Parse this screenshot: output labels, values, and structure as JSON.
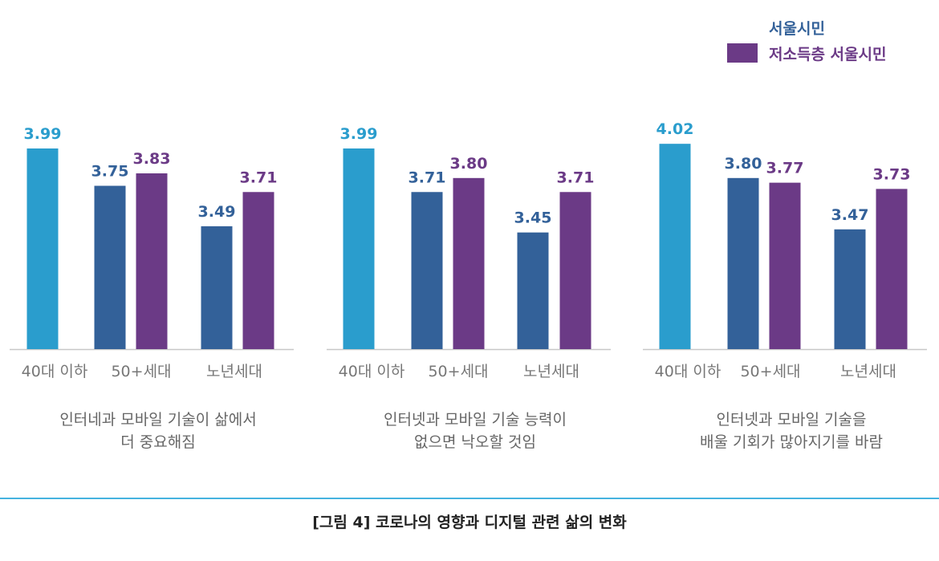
{
  "legend": [
    {
      "label": "서울시민",
      "color": "#336199"
    },
    {
      "label": "저소득층 서울시민",
      "color": "#6b3a86"
    }
  ],
  "caption": "[그림 4] 코로나의 영향과 디지털 관련 삶의 변화",
  "colors": {
    "first_bar": "#2a9dcd",
    "seoul": "#336199",
    "low_income": "#6b3a86",
    "axis": "#c8c8c8",
    "tick_text": "#777777",
    "title_text": "#666666"
  },
  "chart_data": [
    {
      "type": "bar",
      "title_lines": [
        "인터네과 모바일 기술이 삶에서",
        "더 중요해짐"
      ],
      "categories": [
        "40대 이하",
        "50+세대",
        "노년세대"
      ],
      "series": [
        {
          "name": "서울시민",
          "values": [
            3.99,
            3.75,
            3.49
          ],
          "labels": [
            "3.99",
            "3.75",
            "3.49"
          ]
        },
        {
          "name": "저소득층 서울시민",
          "values": [
            null,
            3.83,
            3.71
          ],
          "labels": [
            "",
            "3.83",
            "3.71"
          ]
        }
      ]
    },
    {
      "type": "bar",
      "title_lines": [
        "인터넷과 모바일 기술 능력이",
        "없으면 낙오할 것임"
      ],
      "categories": [
        "40대 이하",
        "50+세대",
        "노년세대"
      ],
      "series": [
        {
          "name": "서울시민",
          "values": [
            3.99,
            3.71,
            3.45
          ],
          "labels": [
            "3.99",
            "3.71",
            "3.45"
          ]
        },
        {
          "name": "저소득층 서울시민",
          "values": [
            null,
            3.8,
            3.71
          ],
          "labels": [
            "",
            "3.80",
            "3.71"
          ]
        }
      ]
    },
    {
      "type": "bar",
      "title_lines": [
        "인터넷과 모바일 기술을",
        "배울 기회가 많아지기를 바람"
      ],
      "categories": [
        "40대 이하",
        "50+세대",
        "노년세대"
      ],
      "series": [
        {
          "name": "서울시민",
          "values": [
            4.02,
            3.8,
            3.47
          ],
          "labels": [
            "4.02",
            "3.80",
            "3.47"
          ]
        },
        {
          "name": "저소득층 서울시민",
          "values": [
            null,
            3.77,
            3.73
          ],
          "labels": [
            "",
            "3.77",
            "3.73"
          ]
        }
      ]
    }
  ]
}
